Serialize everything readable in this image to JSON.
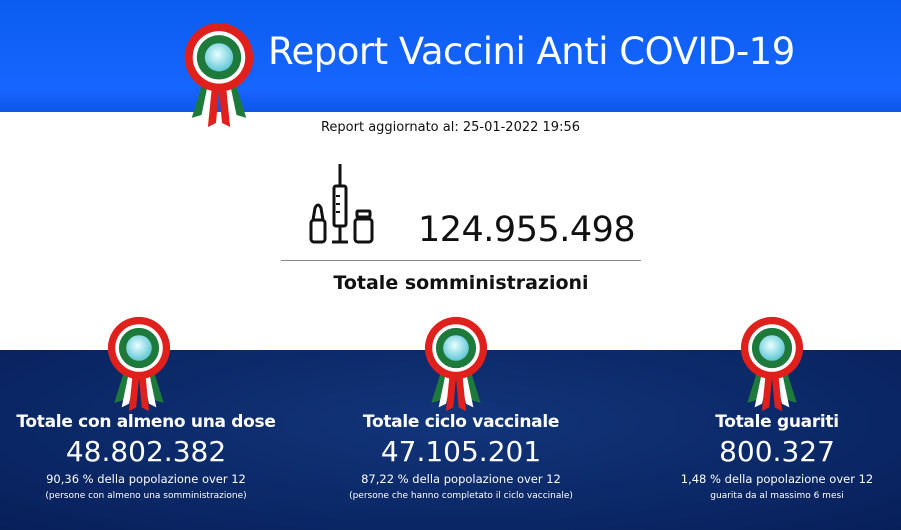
{
  "header": {
    "title": "Report Vaccini Anti COVID-19",
    "logo": "italian-cockade-icon"
  },
  "updated": "Report aggiornato al: 25-01-2022 19:56",
  "total": {
    "icon": "vaccine-vials-syringe-icon",
    "value": "124.955.498",
    "label": "Totale somministrazioni"
  },
  "stats": [
    {
      "title": "Totale con almeno una dose",
      "value": "48.802.382",
      "pct": "90,36 % della popolazione over 12",
      "note": "(persone con almeno una somministrazione)"
    },
    {
      "title": "Totale ciclo vaccinale",
      "value": "47.105.201",
      "pct": "87,22 % della popolazione over 12",
      "note": "(persone che hanno completato il ciclo vaccinale)"
    },
    {
      "title": "Totale guariti",
      "value": "800.327",
      "pct": "1,48 % della popolazione over 12",
      "note": "guarita da al massimo 6 mesi"
    }
  ],
  "colors": {
    "header": "#1766ff",
    "bottom": "#0a2664",
    "green": "#1e7a3a",
    "red": "#e0201c"
  }
}
